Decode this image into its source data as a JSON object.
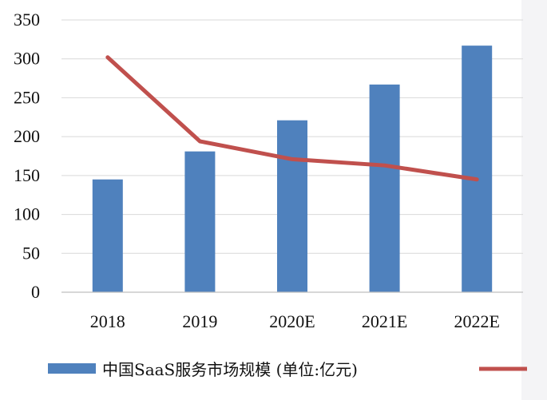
{
  "chart_data": {
    "type": "bar",
    "categories": [
      "2018",
      "2019",
      "2020E",
      "2021E",
      "2022E"
    ],
    "series": [
      {
        "name": "中国SaaS服务市场规模 (单位:亿元)",
        "kind": "bar",
        "color": "#4f81bd",
        "values": [
          145,
          181,
          221,
          267,
          317
        ]
      },
      {
        "name": "",
        "kind": "line",
        "color": "#c0504d",
        "values": [
          302,
          194,
          171,
          163,
          145
        ]
      }
    ],
    "yticks": [
      "0",
      "50",
      "100",
      "150",
      "200",
      "250",
      "300",
      "350"
    ],
    "ylim": [
      0,
      350
    ],
    "grid": true,
    "legend_position": "bottom"
  }
}
